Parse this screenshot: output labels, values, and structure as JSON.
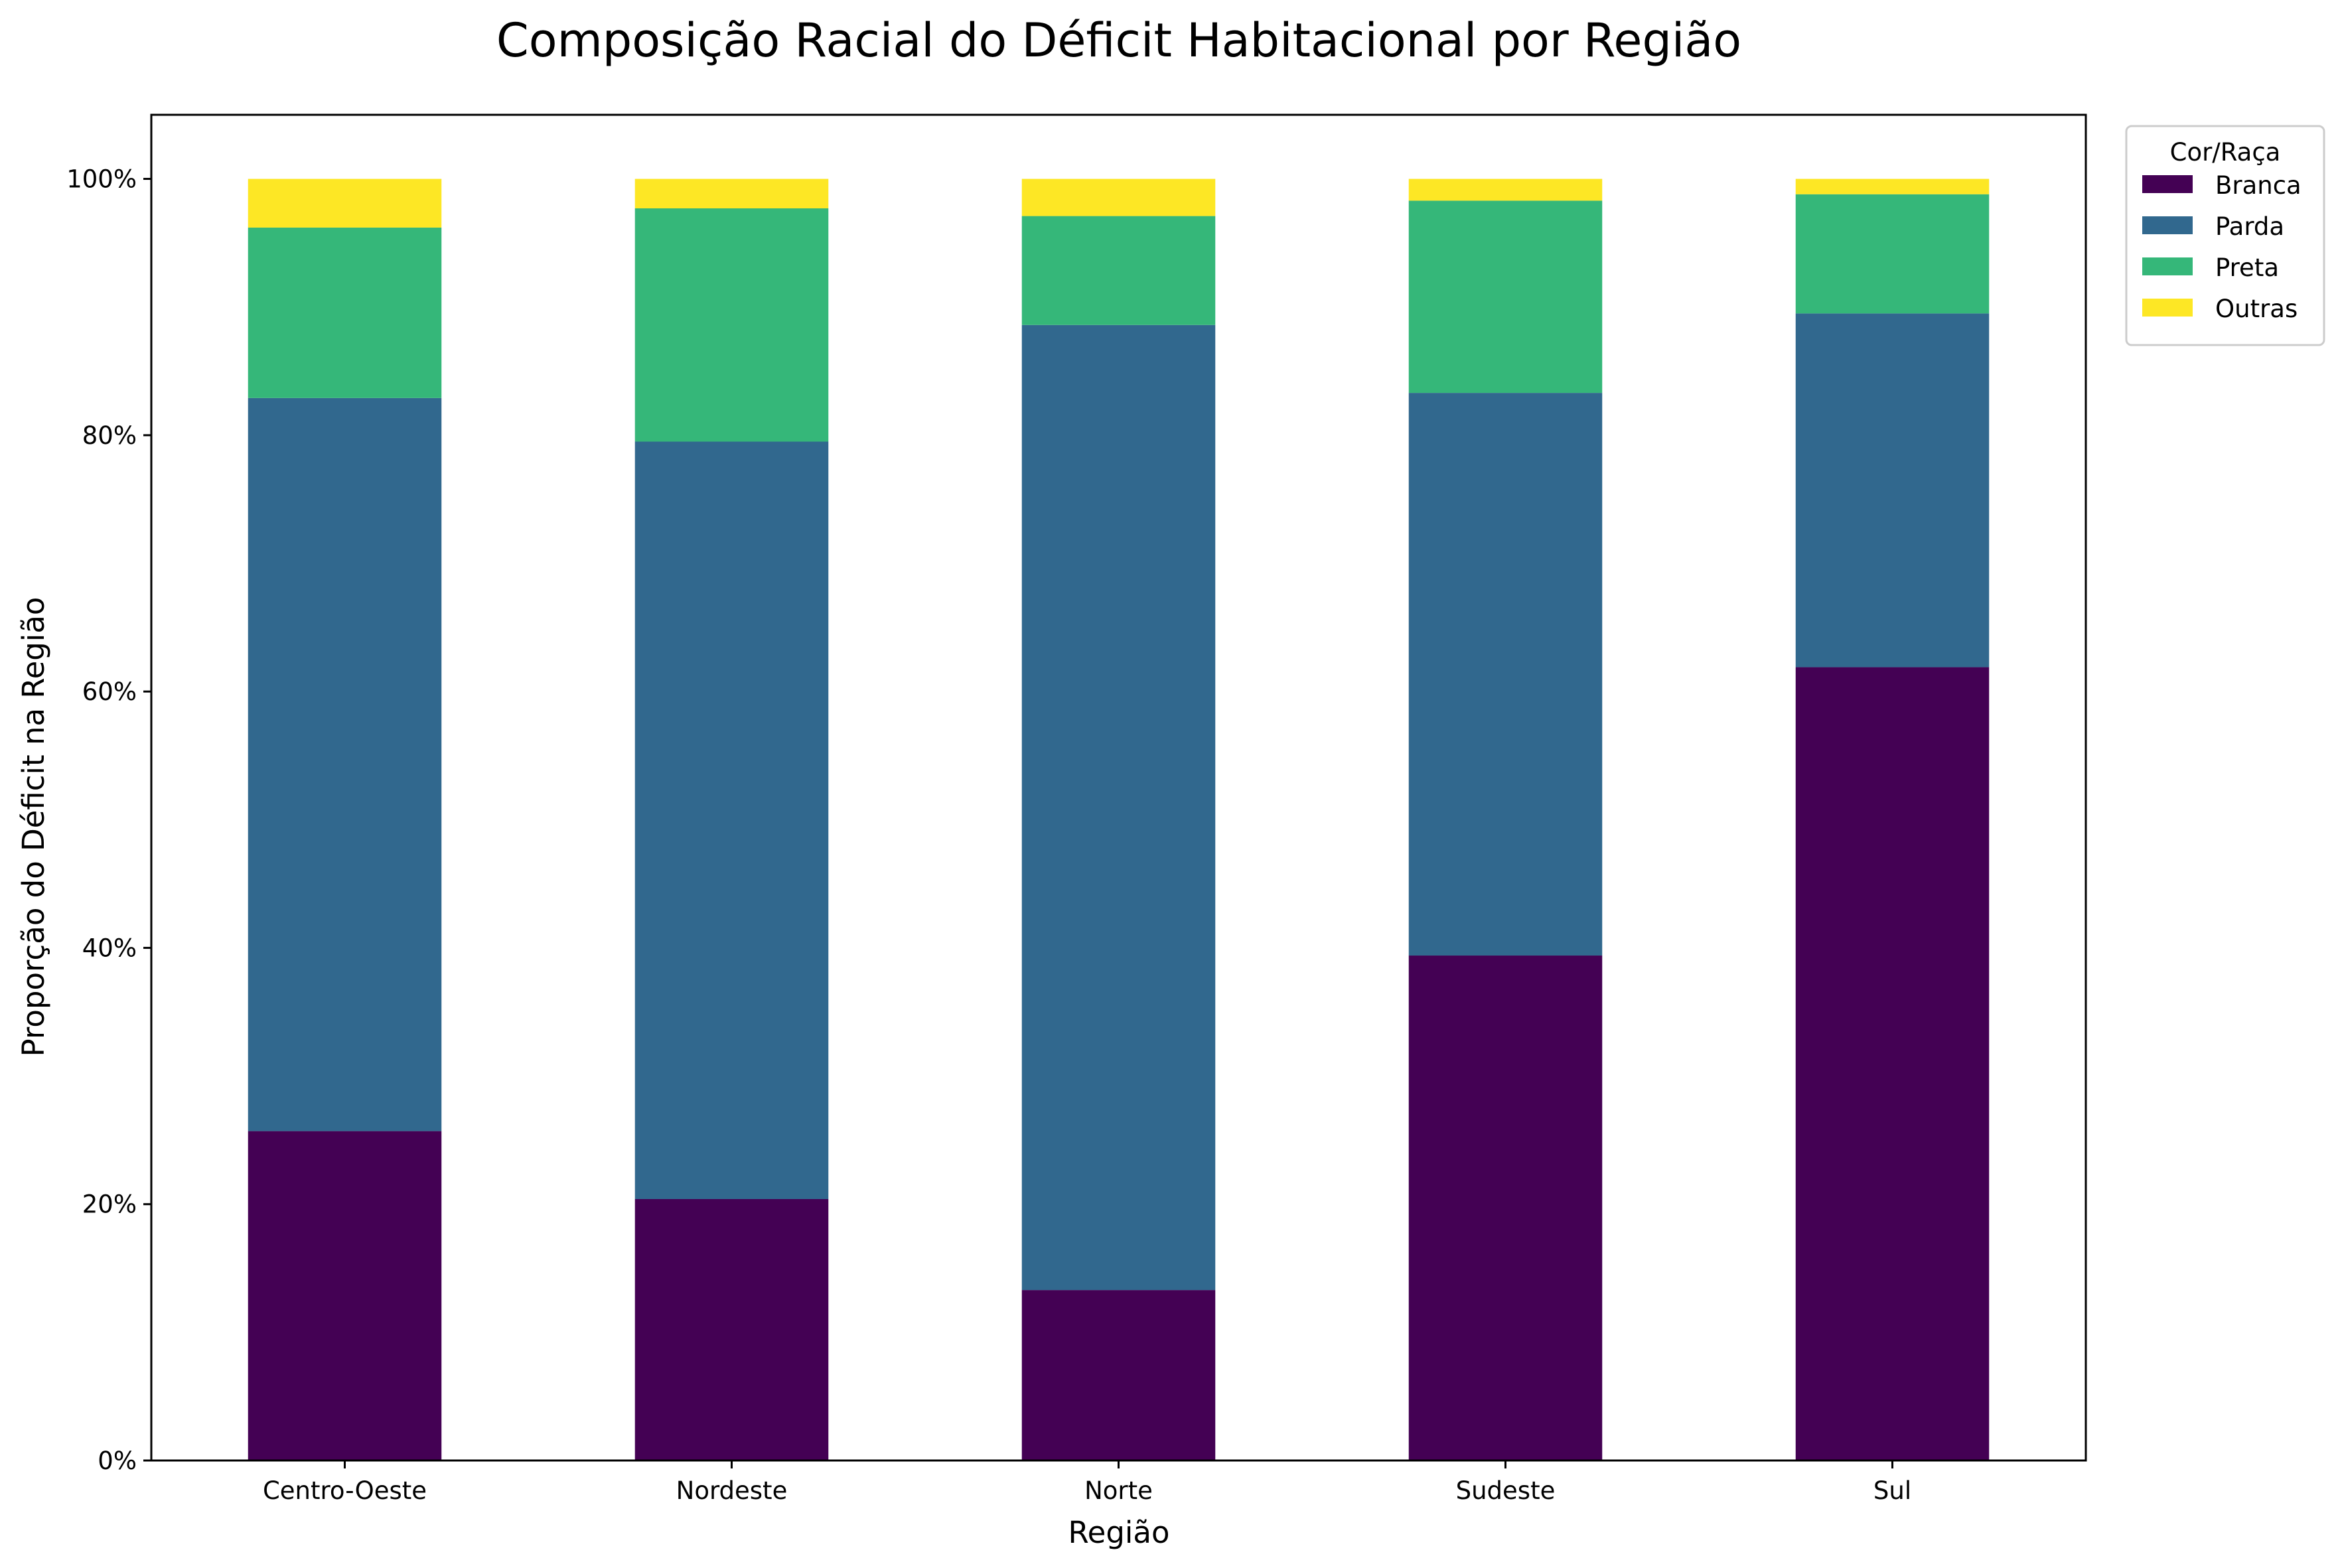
{
  "chart_data": {
    "type": "bar",
    "stacked": true,
    "title": "Composição Racial do Déficit Habitacional por Região",
    "xlabel": "Região",
    "ylabel": "Proporção do Déficit na Região",
    "categories": [
      "Centro-Oeste",
      "Nordeste",
      "Norte",
      "Sudeste",
      "Sul"
    ],
    "ylim": [
      0,
      1.05
    ],
    "yticks": [
      0,
      0.2,
      0.4,
      0.6,
      0.8,
      1.0
    ],
    "ytick_labels": [
      "0%",
      "20%",
      "40%",
      "60%",
      "80%",
      "100%"
    ],
    "grid": false,
    "legend": {
      "title": "Cor/Raça",
      "placement": "outside-top-right"
    },
    "series": [
      {
        "name": "Branca",
        "color": "#440154",
        "values": [
          0.257,
          0.204,
          0.133,
          0.394,
          0.619
        ]
      },
      {
        "name": "Parda",
        "color": "#31688e",
        "values": [
          0.572,
          0.591,
          0.753,
          0.439,
          0.276
        ]
      },
      {
        "name": "Preta",
        "color": "#35b779",
        "values": [
          0.133,
          0.182,
          0.085,
          0.15,
          0.093
        ]
      },
      {
        "name": "Outras",
        "color": "#fde725",
        "values": [
          0.038,
          0.023,
          0.029,
          0.017,
          0.012
        ]
      }
    ]
  }
}
